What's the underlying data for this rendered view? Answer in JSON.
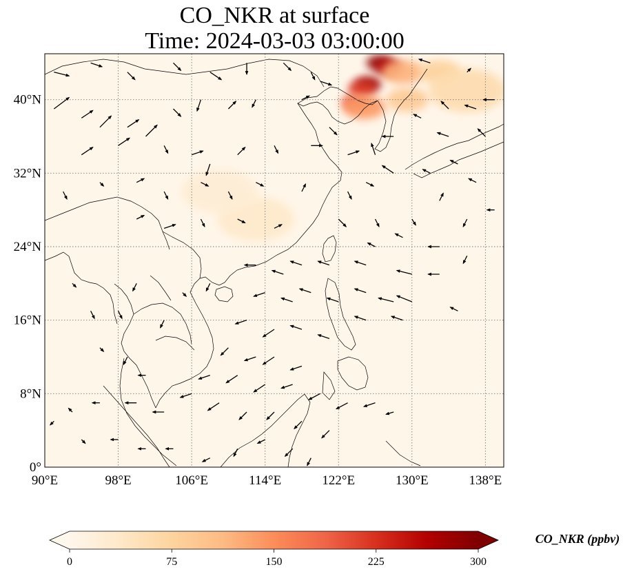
{
  "title": {
    "line1": "CO_NKR at surface",
    "line2": "Time: 2024-03-03 03:00:00"
  },
  "map": {
    "lon_range": [
      90,
      140
    ],
    "lat_range": [
      0,
      45
    ],
    "lon_ticks": [
      {
        "value": 90,
        "label": "90°E"
      },
      {
        "value": 98,
        "label": "98°E"
      },
      {
        "value": 106,
        "label": "106°E"
      },
      {
        "value": 114,
        "label": "114°E"
      },
      {
        "value": 122,
        "label": "122°E"
      },
      {
        "value": 130,
        "label": "130°E"
      },
      {
        "value": 138,
        "label": "138°E"
      }
    ],
    "lat_ticks": [
      {
        "value": 0,
        "label": "0°"
      },
      {
        "value": 8,
        "label": "8°N"
      },
      {
        "value": 16,
        "label": "16°N"
      },
      {
        "value": 24,
        "label": "24°N"
      },
      {
        "value": 32,
        "label": "32°N"
      },
      {
        "value": 40,
        "label": "40°N"
      }
    ],
    "gridlines": true,
    "colormap": "OrRd",
    "background_color": "#fff6ea",
    "hotspots": [
      {
        "lon": 126.5,
        "lat": 44.0,
        "value": 290
      },
      {
        "lon": 127.5,
        "lat": 43.5,
        "value": 260
      },
      {
        "lon": 125.2,
        "lat": 41.7,
        "value": 280
      },
      {
        "lon": 124.5,
        "lat": 41.2,
        "value": 220
      },
      {
        "lon": 123.8,
        "lat": 39.7,
        "value": 200
      },
      {
        "lon": 124.8,
        "lat": 39.2,
        "value": 140
      },
      {
        "lon": 129.0,
        "lat": 43.0,
        "value": 120
      },
      {
        "lon": 133.0,
        "lat": 43.0,
        "value": 80
      },
      {
        "lon": 136.0,
        "lat": 41.0,
        "value": 60
      },
      {
        "lon": 129.5,
        "lat": 40.0,
        "value": 90
      },
      {
        "lon": 113.0,
        "lat": 27.0,
        "value": 35
      },
      {
        "lon": 109.0,
        "lat": 30.0,
        "value": 25
      }
    ],
    "wind_vectors": [
      [
        91,
        43,
        2,
        -0.5
      ],
      [
        95,
        44,
        1.5,
        -0.5
      ],
      [
        99,
        43,
        1,
        -1
      ],
      [
        104,
        44,
        1,
        -1
      ],
      [
        108,
        43,
        1.5,
        -1
      ],
      [
        112,
        44,
        0,
        -1.5
      ],
      [
        116,
        44,
        1,
        -1
      ],
      [
        119,
        43,
        0.5,
        -1
      ],
      [
        120,
        42,
        1.5,
        -0.5
      ],
      [
        91,
        39,
        2,
        1.5
      ],
      [
        94,
        38,
        1.5,
        1
      ],
      [
        96,
        37,
        1.5,
        1.5
      ],
      [
        99,
        37,
        1.5,
        1
      ],
      [
        101,
        36,
        1.5,
        1.5
      ],
      [
        94,
        34,
        1.5,
        1
      ],
      [
        98,
        35,
        1.5,
        1
      ],
      [
        104,
        39,
        1,
        -1
      ],
      [
        107,
        40,
        -0.5,
        -1.5
      ],
      [
        110,
        39,
        1,
        1
      ],
      [
        113,
        40,
        -0.5,
        -1
      ],
      [
        118,
        40,
        1,
        0.5
      ],
      [
        103,
        35,
        0.5,
        -1
      ],
      [
        106,
        34,
        1.5,
        0.5
      ],
      [
        108,
        33,
        -0.5,
        -1.5
      ],
      [
        111,
        34,
        1,
        1
      ],
      [
        115,
        35,
        0.5,
        -1
      ],
      [
        119,
        35,
        1.5,
        0
      ],
      [
        123,
        34,
        1.5,
        0.5
      ],
      [
        121,
        37,
        1,
        -1
      ],
      [
        92,
        30,
        0.5,
        -1
      ],
      [
        96,
        31,
        0.5,
        -0.5
      ],
      [
        100,
        31,
        1,
        0.5
      ],
      [
        103,
        30,
        0.5,
        -1
      ],
      [
        107,
        31,
        1,
        -0.5
      ],
      [
        110,
        30,
        0.5,
        -1
      ],
      [
        113,
        31,
        1,
        -0.5
      ],
      [
        118,
        30,
        0.5,
        1
      ],
      [
        123,
        30,
        0.5,
        -1
      ],
      [
        125,
        31,
        1,
        -0.5
      ],
      [
        100,
        27,
        1,
        0.5
      ],
      [
        103,
        26,
        1.5,
        0.5
      ],
      [
        107,
        27,
        0.5,
        -1
      ],
      [
        111,
        27,
        1,
        -0.5
      ],
      [
        115,
        26,
        1,
        0.5
      ],
      [
        122,
        27,
        1,
        -1
      ],
      [
        126,
        27,
        0.5,
        -1
      ],
      [
        130,
        27,
        0.5,
        -0.8
      ],
      [
        128,
        32,
        -1.5,
        1
      ],
      [
        132,
        32,
        -1,
        0.5
      ],
      [
        135,
        33,
        -1,
        0.5
      ],
      [
        137,
        31,
        -1,
        0.5
      ],
      [
        133,
        29,
        0.5,
        1
      ],
      [
        136,
        27,
        -0.5,
        -1
      ],
      [
        139,
        28,
        -1,
        0
      ],
      [
        126,
        24,
        -1,
        0.5
      ],
      [
        129,
        25,
        -1,
        0.5
      ],
      [
        133,
        24,
        -1.5,
        0
      ],
      [
        136,
        23,
        -0.5,
        -1
      ],
      [
        125,
        22,
        -1.5,
        0.5
      ],
      [
        130,
        21,
        -2,
        0.5
      ],
      [
        133,
        21,
        -1.5,
        0
      ],
      [
        125,
        19,
        -1.5,
        0.5
      ],
      [
        128,
        18,
        -2,
        0.5
      ],
      [
        130,
        18,
        -2,
        0.8
      ],
      [
        135,
        17,
        -1,
        0.5
      ],
      [
        125,
        16,
        -1.5,
        0.5
      ],
      [
        129,
        16,
        -1.5,
        0.5
      ],
      [
        113,
        22,
        -1.5,
        0
      ],
      [
        116,
        21,
        -1.5,
        0.5
      ],
      [
        118,
        22,
        -1.5,
        0.5
      ],
      [
        121,
        22,
        -1.5,
        0.5
      ],
      [
        114,
        19,
        -1.5,
        -0.5
      ],
      [
        117,
        18,
        -1.5,
        0.5
      ],
      [
        119,
        19,
        -1.5,
        0.5
      ],
      [
        122,
        18,
        -1.5,
        0.5
      ],
      [
        112,
        16,
        -1.5,
        -0.5
      ],
      [
        115,
        15,
        -1.5,
        -1
      ],
      [
        118,
        15,
        -1.5,
        0.5
      ],
      [
        121,
        14,
        -1.5,
        0.5
      ],
      [
        110,
        13,
        -1,
        -1
      ],
      [
        113,
        12,
        -1.5,
        -0.5
      ],
      [
        115,
        12,
        -1.5,
        -1
      ],
      [
        118,
        11,
        -1.5,
        -0.5
      ],
      [
        108,
        10,
        -1.5,
        -0.5
      ],
      [
        111,
        10,
        -1.5,
        -1
      ],
      [
        114,
        9,
        -1.5,
        -1
      ],
      [
        117,
        9,
        -1.5,
        -0.5
      ],
      [
        120,
        8,
        -1.5,
        -0.8
      ],
      [
        123,
        7,
        -1.5,
        -0.8
      ],
      [
        126,
        7,
        -1.5,
        -0.5
      ],
      [
        128,
        6,
        -1,
        -0.3
      ],
      [
        106,
        8,
        -1.5,
        -0.5
      ],
      [
        109,
        7,
        -1.5,
        -1
      ],
      [
        112,
        6,
        -1,
        -1
      ],
      [
        115,
        6,
        -1,
        -1
      ],
      [
        118,
        5,
        -1,
        -1
      ],
      [
        121,
        4,
        -1,
        -1
      ],
      [
        103,
        6,
        -1.5,
        0
      ],
      [
        100,
        7,
        -1.5,
        0
      ],
      [
        96,
        7,
        -1,
        0
      ],
      [
        93,
        6,
        -0.5,
        0.5
      ],
      [
        91,
        5,
        -0.5,
        -0.5
      ],
      [
        94,
        3,
        0.5,
        -0.5
      ],
      [
        98,
        3,
        -1,
        0
      ],
      [
        101,
        2,
        -1,
        0
      ],
      [
        104,
        2,
        -1,
        0
      ],
      [
        108,
        1,
        -1,
        -0.5
      ],
      [
        111,
        2,
        -0.5,
        -1
      ],
      [
        114,
        3,
        -1,
        -0.5
      ],
      [
        117,
        2,
        -1,
        -1
      ],
      [
        119,
        1,
        -0.5,
        -1
      ],
      [
        93,
        20,
        0.5,
        -0.5
      ],
      [
        95,
        17,
        0.5,
        -1
      ],
      [
        98,
        17,
        0.5,
        -1
      ],
      [
        100,
        20,
        -0.5,
        -1
      ],
      [
        103,
        16,
        -0.5,
        -1
      ],
      [
        105,
        19,
        0.5,
        -0.5
      ],
      [
        108,
        20,
        -0.5,
        -1
      ],
      [
        96,
        13,
        0.5,
        -0.5
      ],
      [
        99,
        12,
        -0.5,
        -1
      ],
      [
        101,
        10,
        -1,
        0
      ],
      [
        132,
        44,
        -1.5,
        0.5
      ],
      [
        136,
        43,
        0.5,
        0.5
      ],
      [
        134,
        39,
        -1,
        1
      ],
      [
        137,
        39,
        -1.5,
        0.5
      ],
      [
        139,
        40,
        -1.5,
        0
      ],
      [
        131,
        38,
        -1,
        0.5
      ],
      [
        134,
        36,
        -1.5,
        0.5
      ],
      [
        138,
        36,
        -1,
        1
      ],
      [
        128,
        36,
        -1.5,
        0
      ],
      [
        126,
        34,
        -0.5,
        1.5
      ]
    ],
    "coastline_color": "#000000"
  },
  "colorbar": {
    "label": "CO_NKR (ppbv)",
    "ticks": [
      {
        "value": 0,
        "label": "0"
      },
      {
        "value": 75,
        "label": "75"
      },
      {
        "value": 150,
        "label": "150"
      },
      {
        "value": 225,
        "label": "225"
      },
      {
        "value": 300,
        "label": "300"
      }
    ],
    "range": [
      0,
      300
    ],
    "extend": "both",
    "color_stops": [
      "#fff7ec",
      "#fee8c8",
      "#fdd49e",
      "#fdbb84",
      "#fc8d59",
      "#ef6548",
      "#d7301f",
      "#b30000",
      "#7f0000"
    ]
  }
}
